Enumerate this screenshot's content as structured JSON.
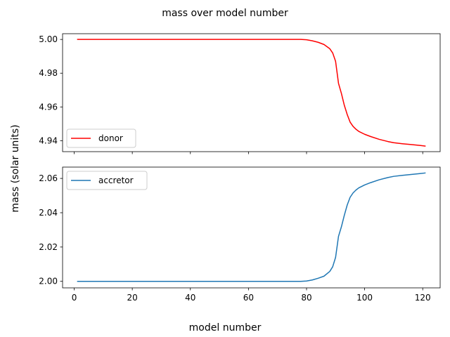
{
  "chart_data": {
    "type": "line",
    "title": "mass over model number",
    "xlabel": "model number",
    "ylabel": "mass (solar units)",
    "xlim": [
      -4,
      126
    ],
    "xticks": [
      0,
      20,
      40,
      60,
      80,
      100,
      120
    ],
    "shared_x": true,
    "panels": [
      {
        "position": "top",
        "ylim": [
          4.9335,
          5.0034
        ],
        "yticks": [
          "5.00",
          "4.98",
          "4.96",
          "4.94"
        ],
        "legend_position": "lower-left",
        "series": [
          {
            "name": "donor",
            "color": "#ff0000",
            "x": [
              1,
              10,
              20,
              30,
              40,
              50,
              60,
              70,
              78,
              80,
              82,
              84,
              86,
              88,
              89,
              90,
              91,
              92,
              93,
              94,
              95,
              96,
              97,
              98,
              100,
              102,
              105,
              108,
              110,
              113,
              116,
              119,
              121
            ],
            "y": [
              5.0,
              5.0,
              5.0,
              5.0,
              5.0,
              5.0,
              5.0,
              5.0,
              5.0,
              4.9998,
              4.9992,
              4.9983,
              4.997,
              4.9945,
              4.992,
              4.987,
              4.974,
              4.968,
              4.961,
              4.9555,
              4.951,
              4.9485,
              4.9468,
              4.9455,
              4.9438,
              4.9425,
              4.9408,
              4.9395,
              4.9388,
              4.9382,
              4.9377,
              4.9372,
              4.9368
            ]
          }
        ]
      },
      {
        "position": "bottom",
        "ylim": [
          1.9962,
          2.0666
        ],
        "yticks": [
          "2.06",
          "2.04",
          "2.02",
          "2.00"
        ],
        "legend_position": "upper-left",
        "series": [
          {
            "name": "accretor",
            "color": "#1f77b4",
            "x": [
              1,
              10,
              20,
              30,
              40,
              50,
              60,
              70,
              78,
              80,
              82,
              84,
              86,
              88,
              89,
              90,
              91,
              92,
              93,
              94,
              95,
              96,
              97,
              98,
              100,
              102,
              105,
              108,
              110,
              113,
              116,
              119,
              121
            ],
            "y": [
              2.0,
              2.0,
              2.0,
              2.0,
              2.0,
              2.0,
              2.0,
              2.0,
              2.0,
              2.0002,
              2.0008,
              2.0018,
              2.003,
              2.0058,
              2.0085,
              2.014,
              2.0262,
              2.0318,
              2.0385,
              2.0445,
              2.049,
              2.0515,
              2.0532,
              2.0545,
              2.0562,
              2.0575,
              2.0592,
              2.0605,
              2.0612,
              2.0618,
              2.0623,
              2.0628,
              2.0632
            ]
          }
        ]
      }
    ]
  }
}
